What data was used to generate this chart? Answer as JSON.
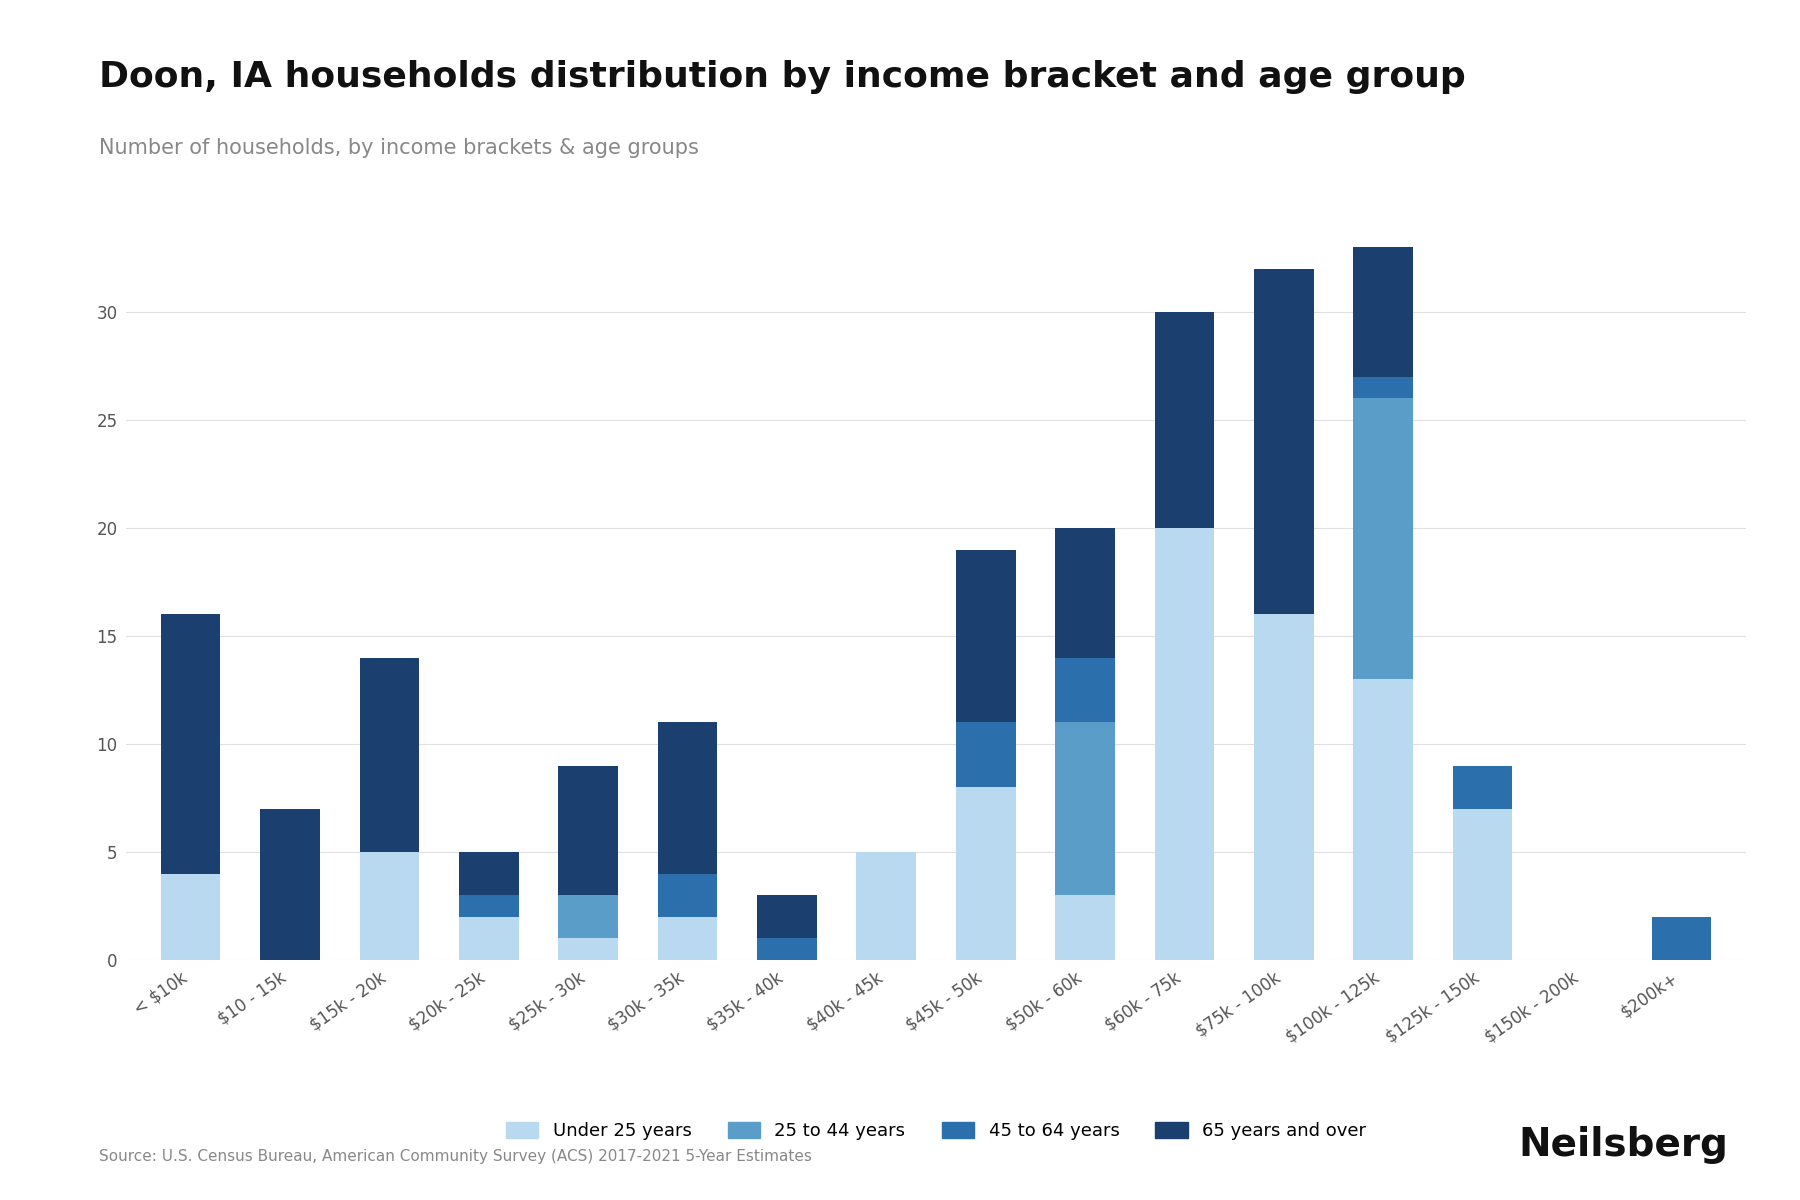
{
  "title": "Doon, IA households distribution by income bracket and age group",
  "subtitle": "Number of households, by income brackets & age groups",
  "source": "Source: U.S. Census Bureau, American Community Survey (ACS) 2017-2021 5-Year Estimates",
  "categories": [
    "< $10k",
    "$10 - 15k",
    "$15k - 20k",
    "$20k - 25k",
    "$25k - 30k",
    "$30k - 35k",
    "$35k - 40k",
    "$40k - 45k",
    "$45k - 50k",
    "$50k - 60k",
    "$60k - 75k",
    "$75k - 100k",
    "$100k - 125k",
    "$125k - 150k",
    "$150k - 200k",
    "$200k+"
  ],
  "age_groups": [
    "Under 25 years",
    "25 to 44 years",
    "45 to 64 years",
    "65 years and over"
  ],
  "colors": [
    "#b8d9f0",
    "#5b9dc9",
    "#2b6fad",
    "#1b3f6e"
  ],
  "data": {
    "Under 25 years": [
      4,
      0,
      5,
      2,
      1,
      2,
      0,
      5,
      8,
      3,
      20,
      16,
      13,
      7,
      0,
      0
    ],
    "25 to 44 years": [
      0,
      0,
      0,
      0,
      2,
      0,
      0,
      0,
      0,
      8,
      0,
      0,
      13,
      0,
      0,
      0
    ],
    "45 to 64 years": [
      0,
      0,
      0,
      1,
      0,
      2,
      1,
      0,
      3,
      3,
      0,
      0,
      1,
      2,
      0,
      2
    ],
    "65 years and over": [
      12,
      7,
      9,
      2,
      6,
      7,
      2,
      0,
      8,
      6,
      10,
      16,
      6,
      0,
      0,
      0
    ]
  },
  "ylim": [
    0,
    35
  ],
  "yticks": [
    0,
    5,
    10,
    15,
    20,
    25,
    30
  ],
  "background_color": "#ffffff",
  "grid_color": "#e0e0e0",
  "title_fontsize": 26,
  "subtitle_fontsize": 15,
  "tick_fontsize": 12,
  "legend_fontsize": 13,
  "source_fontsize": 11,
  "bar_width": 0.6
}
